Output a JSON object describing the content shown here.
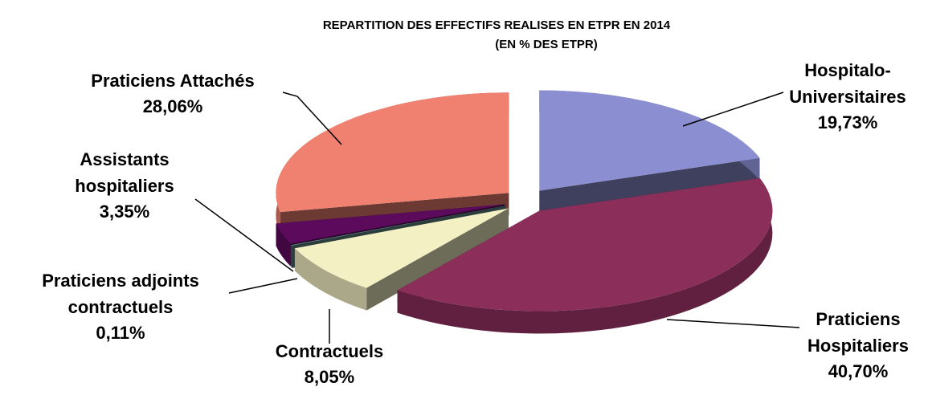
{
  "chart_data": {
    "type": "pie",
    "title": "REPARTITION DES EFFECTIFS REALISES EN ETPR EN 2014",
    "subtitle": "(EN % DES ETPR)",
    "categories": [
      "Hospitalo-\nUniversitaires",
      "Praticiens\nHospitaliers",
      "Contractuels",
      "Praticiens adjoints\ncontractuels",
      "Assistants\nhospitaliers",
      "Praticiens Attachés"
    ],
    "values": [
      19.73,
      40.7,
      8.05,
      0.11,
      3.35,
      28.06
    ],
    "value_labels": [
      "19,73%",
      "40,70%",
      "8,05%",
      "0,11%",
      "3,35%",
      "28,06%"
    ],
    "colors": [
      "#8b8fd1",
      "#8b2e5a",
      "#f3f0c4",
      "#5f8585",
      "#5c0a5c",
      "#f08070"
    ]
  }
}
